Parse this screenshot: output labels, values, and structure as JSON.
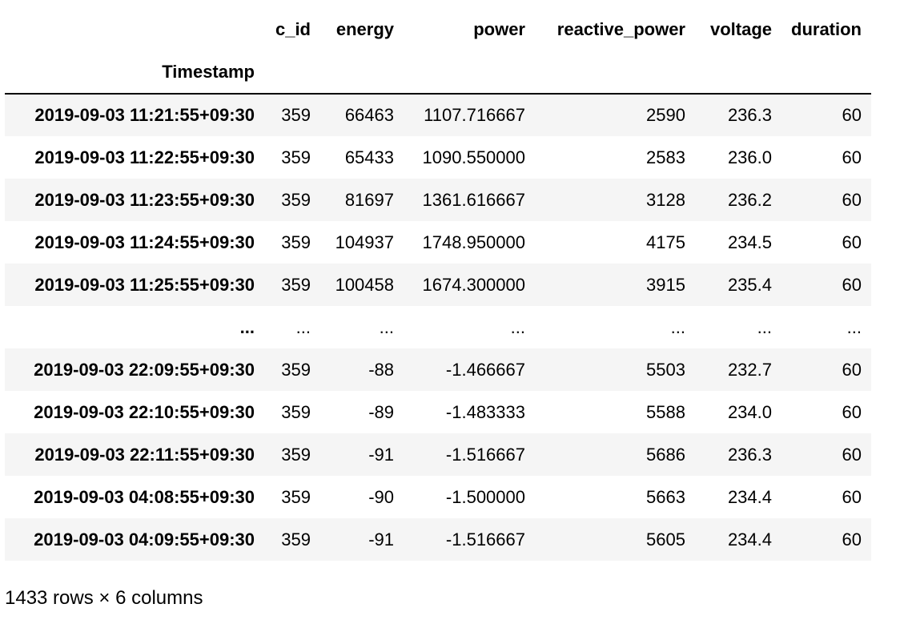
{
  "table": {
    "index_name": "Timestamp",
    "columns": [
      "c_id",
      "energy",
      "power",
      "reactive_power",
      "voltage",
      "duration"
    ],
    "rows": [
      {
        "index": "2019-09-03 11:21:55+09:30",
        "cells": [
          "359",
          "66463",
          "1107.716667",
          "2590",
          "236.3",
          "60"
        ]
      },
      {
        "index": "2019-09-03 11:22:55+09:30",
        "cells": [
          "359",
          "65433",
          "1090.550000",
          "2583",
          "236.0",
          "60"
        ]
      },
      {
        "index": "2019-09-03 11:23:55+09:30",
        "cells": [
          "359",
          "81697",
          "1361.616667",
          "3128",
          "236.2",
          "60"
        ]
      },
      {
        "index": "2019-09-03 11:24:55+09:30",
        "cells": [
          "359",
          "104937",
          "1748.950000",
          "4175",
          "234.5",
          "60"
        ]
      },
      {
        "index": "2019-09-03 11:25:55+09:30",
        "cells": [
          "359",
          "100458",
          "1674.300000",
          "3915",
          "235.4",
          "60"
        ]
      },
      {
        "index": "...",
        "cells": [
          "...",
          "...",
          "...",
          "...",
          "...",
          "..."
        ]
      },
      {
        "index": "2019-09-03 22:09:55+09:30",
        "cells": [
          "359",
          "-88",
          "-1.466667",
          "5503",
          "232.7",
          "60"
        ]
      },
      {
        "index": "2019-09-03 22:10:55+09:30",
        "cells": [
          "359",
          "-89",
          "-1.483333",
          "5588",
          "234.0",
          "60"
        ]
      },
      {
        "index": "2019-09-03 22:11:55+09:30",
        "cells": [
          "359",
          "-91",
          "-1.516667",
          "5686",
          "236.3",
          "60"
        ]
      },
      {
        "index": "2019-09-03 04:08:55+09:30",
        "cells": [
          "359",
          "-90",
          "-1.500000",
          "5663",
          "234.4",
          "60"
        ]
      },
      {
        "index": "2019-09-03 04:09:55+09:30",
        "cells": [
          "359",
          "-91",
          "-1.516667",
          "5605",
          "234.4",
          "60"
        ]
      }
    ]
  },
  "shape_text": "1433 rows × 6 columns",
  "colors": {
    "striped_row": "#f5f5f5",
    "header_border": "#000000"
  }
}
